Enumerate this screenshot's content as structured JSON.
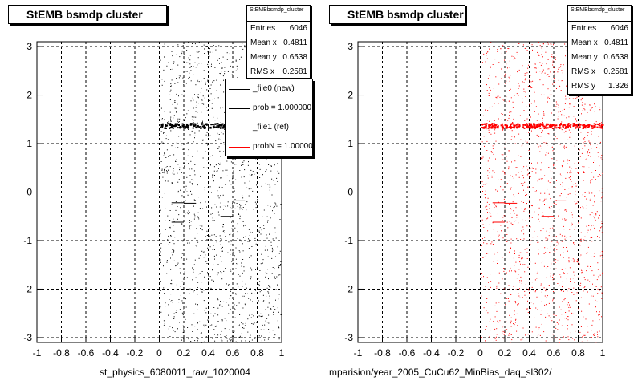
{
  "colors": {
    "ref_series": "#ff0000",
    "new_series": "#000000",
    "grid": "#000000"
  },
  "chart_data": [
    {
      "type": "scatter",
      "title": "StEMB bsmdp cluster",
      "xlabel": "st_physics_6080011_raw_1020004",
      "ylabel": "",
      "xlim": [
        -1,
        1
      ],
      "ylim": [
        -3.1,
        3.1
      ],
      "x_ticks": [
        "-1",
        "-0.8",
        "-0.6",
        "-0.4",
        "-0.2",
        "0",
        "0.2",
        "0.4",
        "0.6",
        "0.8",
        "1"
      ],
      "y_ticks": [
        "-3",
        "-2",
        "-1",
        "0",
        "1",
        "2",
        "3"
      ],
      "grid": true,
      "marker_color": "#000000",
      "stats": {
        "name": "StEMBbsmdp_cluster",
        "rows": [
          {
            "label": "Entries",
            "value": "6046"
          },
          {
            "label": "Mean x",
            "value": "0.4811"
          },
          {
            "label": "Mean y",
            "value": "0.6538"
          },
          {
            "label": "RMS x",
            "value": "0.2581"
          }
        ]
      },
      "legend": [
        {
          "label": "_file0 (new)",
          "color": "#000000"
        },
        {
          "label": "prob = 1.000000",
          "color": "#000000"
        },
        {
          "label": "_file1 (ref)",
          "color": "#ff0000"
        },
        {
          "label": "probN = 1.000000",
          "color": "#ff0000"
        }
      ],
      "band": {
        "y": 1.38,
        "x_range": [
          0,
          1
        ]
      },
      "segments": [
        {
          "x": [
            0.1,
            0.2
          ],
          "y": -0.22
        },
        {
          "x": [
            0.2,
            0.3
          ],
          "y": -0.23
        },
        {
          "x": [
            0.1,
            0.2
          ],
          "y": -0.62
        },
        {
          "x": [
            0.5,
            0.6
          ],
          "y": -0.5
        },
        {
          "x": [
            0.6,
            0.7
          ],
          "y": -0.18
        }
      ],
      "scatter_region": {
        "x": [
          0,
          1
        ],
        "y": [
          -3.1,
          3.1
        ],
        "n_points": 1500
      }
    },
    {
      "type": "scatter",
      "title": "StEMB bsmdp cluster",
      "xlabel": "mparision/year_2005_CuCu62_MinBias_daq_sl302/",
      "ylabel": "",
      "xlim": [
        -1,
        1
      ],
      "ylim": [
        -3.1,
        3.1
      ],
      "x_ticks": [
        "-1",
        "-0.8",
        "-0.6",
        "-0.4",
        "-0.2",
        "0",
        "0.2",
        "0.4",
        "0.6",
        "0.8",
        "1"
      ],
      "y_ticks": [
        "-3",
        "-2",
        "-1",
        "0",
        "1",
        "2",
        "3"
      ],
      "grid": true,
      "marker_color": "#ff0000",
      "stats": {
        "name": "StEMBbsmdp_cluster",
        "rows": [
          {
            "label": "Entries",
            "value": "6046"
          },
          {
            "label": "Mean x",
            "value": "0.4811"
          },
          {
            "label": "Mean y",
            "value": "0.6538"
          },
          {
            "label": "RMS x",
            "value": "0.2581"
          },
          {
            "label": "RMS y",
            "value": "1.326"
          }
        ]
      },
      "legend": [],
      "band": {
        "y": 1.38,
        "x_range": [
          0,
          1
        ]
      },
      "segments": [
        {
          "x": [
            0.1,
            0.2
          ],
          "y": -0.22
        },
        {
          "x": [
            0.2,
            0.3
          ],
          "y": -0.23
        },
        {
          "x": [
            0.1,
            0.2
          ],
          "y": -0.62
        },
        {
          "x": [
            0.5,
            0.6
          ],
          "y": -0.5
        },
        {
          "x": [
            0.6,
            0.7
          ],
          "y": -0.18
        }
      ],
      "scatter_region": {
        "x": [
          0,
          1
        ],
        "y": [
          -3.1,
          3.1
        ],
        "n_points": 1500
      }
    }
  ]
}
